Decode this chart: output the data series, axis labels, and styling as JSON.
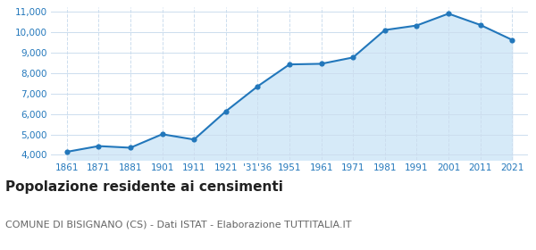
{
  "x_positions": [
    0,
    1,
    2,
    3,
    4,
    5,
    6,
    7,
    8,
    9,
    10,
    11,
    12,
    13,
    14
  ],
  "x_labels": [
    "1861",
    "1871",
    "1881",
    "1901",
    "1911",
    "1921",
    "'31'36",
    "1951",
    "1961",
    "1971",
    "1981",
    "1991",
    "2001",
    "2011",
    "2021"
  ],
  "values": [
    4150,
    4430,
    4350,
    5010,
    4750,
    6130,
    7350,
    8420,
    8450,
    8760,
    10100,
    10320,
    10900,
    10350,
    9620
  ],
  "line_color": "#2277bb",
  "fill_color": "#d6eaf8",
  "marker_color": "#2277bb",
  "background_color": "#ffffff",
  "grid_color": "#ccddee",
  "ylim": [
    3750,
    11200
  ],
  "yticks": [
    4000,
    5000,
    6000,
    7000,
    8000,
    9000,
    10000,
    11000
  ],
  "ytick_labels": [
    "4,000",
    "5,000",
    "6,000",
    "7,000",
    "8,000",
    "9,000",
    "10,000",
    "11,000"
  ],
  "title": "Popolazione residente ai censimenti",
  "subtitle": "COMUNE DI BISIGNANO (CS) - Dati ISTAT - Elaborazione TUTTITALIA.IT",
  "title_fontsize": 11,
  "subtitle_fontsize": 8,
  "tick_label_color": "#2277bb",
  "title_color": "#222222",
  "subtitle_color": "#666666"
}
